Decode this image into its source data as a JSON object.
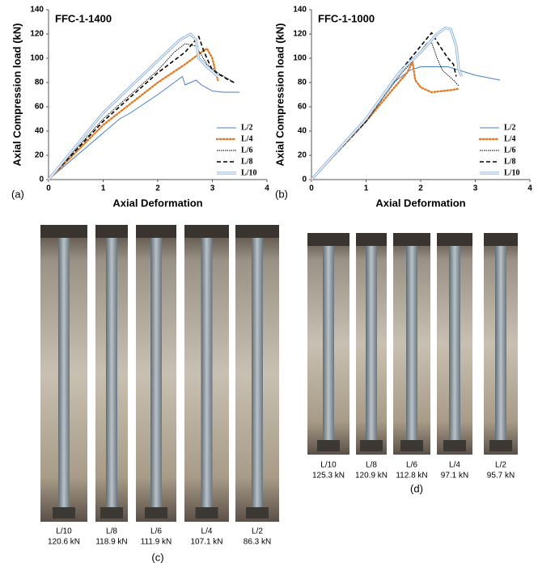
{
  "chart_data": [
    {
      "type": "line",
      "title": "FFC-1-1400",
      "panel": "(a)",
      "x_label": "Axial Deformation",
      "y_label": "Axial Compression load (kN)",
      "xlim": [
        0,
        4
      ],
      "xticks": [
        0,
        1,
        2,
        3,
        4
      ],
      "ylim": [
        0,
        140
      ],
      "yticks": [
        0,
        20,
        40,
        60,
        80,
        100,
        120,
        140
      ],
      "legend": "lower right",
      "series": [
        {
          "name": "L/2",
          "color": "#4a7fc1",
          "style": "solid",
          "x": [
            0,
            1.3,
            1.5,
            2,
            2.3,
            2.45,
            2.5,
            2.7,
            2.8,
            3,
            3.2,
            3.5
          ],
          "values": [
            0,
            50,
            55,
            70,
            80,
            85,
            78,
            82,
            78,
            73,
            72,
            72
          ]
        },
        {
          "name": "L/4",
          "color": "#e07b28",
          "style": "dotted",
          "x": [
            0,
            1,
            2,
            2.5,
            2.8,
            2.9,
            3,
            3.05,
            3.1
          ],
          "values": [
            0,
            45,
            80,
            95,
            105,
            108,
            100,
            90,
            82
          ]
        },
        {
          "name": "L/6",
          "color": "#000000",
          "style": "fine",
          "x": [
            0,
            1,
            2,
            2.3,
            2.5,
            2.7,
            2.9,
            3.1,
            3.4
          ],
          "values": [
            0,
            50,
            90,
            105,
            112,
            110,
            95,
            88,
            80
          ]
        },
        {
          "name": "L/8",
          "color": "#000000",
          "style": "dashed",
          "x": [
            0,
            1,
            2,
            2.5,
            2.75,
            2.85,
            3,
            3.3,
            3.4
          ],
          "values": [
            0,
            48,
            88,
            105,
            118,
            105,
            90,
            82,
            80
          ]
        },
        {
          "name": "L/10",
          "color": "#8fb4de",
          "style": "double",
          "x": [
            0,
            1,
            2,
            2.4,
            2.6,
            2.7,
            2.75,
            2.9,
            3.1
          ],
          "values": [
            0,
            55,
            98,
            115,
            120,
            115,
            100,
            93,
            85
          ]
        }
      ]
    },
    {
      "type": "line",
      "title": "FFC-1-1000",
      "panel": "(b)",
      "x_label": "Axial Deformation",
      "y_label": "Axial Compression load (kN)",
      "xlim": [
        0,
        4
      ],
      "xticks": [
        0,
        1,
        2,
        3,
        4
      ],
      "ylim": [
        0,
        140
      ],
      "yticks": [
        0,
        20,
        40,
        60,
        80,
        100,
        120,
        140
      ],
      "legend": "lower right",
      "series": [
        {
          "name": "L/2",
          "color": "#4a7fc1",
          "style": "solid",
          "x": [
            0,
            1,
            1.5,
            1.8,
            2,
            2.5,
            3,
            3.45
          ],
          "values": [
            0,
            50,
            80,
            90,
            93,
            93,
            86,
            82
          ]
        },
        {
          "name": "L/4",
          "color": "#e07b28",
          "style": "dotted",
          "x": [
            0,
            1,
            1.5,
            1.75,
            1.85,
            1.9,
            2,
            2.2,
            2.6,
            2.7
          ],
          "values": [
            0,
            48,
            75,
            88,
            97,
            82,
            76,
            72,
            74,
            75
          ]
        },
        {
          "name": "L/6",
          "color": "#000000",
          "style": "fine",
          "x": [
            0,
            1,
            1.6,
            1.9,
            2.1,
            2.2,
            2.3,
            2.4,
            2.6,
            2.7
          ],
          "values": [
            0,
            48,
            85,
            100,
            112,
            113,
            100,
            90,
            82,
            77
          ]
        },
        {
          "name": "L/8",
          "color": "#000000",
          "style": "dashed",
          "x": [
            0,
            1,
            1.6,
            2,
            2.2,
            2.35,
            2.5,
            2.6,
            2.65
          ],
          "values": [
            0,
            48,
            88,
            110,
            121,
            110,
            100,
            95,
            85
          ]
        },
        {
          "name": "L/10",
          "color": "#8fb4de",
          "style": "double",
          "x": [
            0,
            1,
            1.6,
            2,
            2.3,
            2.45,
            2.55,
            2.65,
            2.7,
            2.75
          ],
          "values": [
            0,
            50,
            88,
            105,
            120,
            125,
            124,
            110,
            90,
            85
          ]
        }
      ]
    }
  ],
  "photos": [
    {
      "panel": "(c)",
      "items": [
        {
          "name": "L/10",
          "load": "120.6 kN"
        },
        {
          "name": "L/8",
          "load": "118.9 kN"
        },
        {
          "name": "L/6",
          "load": "111.9 kN"
        },
        {
          "name": "L/4",
          "load": "107.1 kN"
        },
        {
          "name": "L/2",
          "load": "86.3 kN"
        }
      ]
    },
    {
      "panel": "(d)",
      "items": [
        {
          "name": "L/10",
          "load": "125.3 kN"
        },
        {
          "name": "L/8",
          "load": "120.9 kN"
        },
        {
          "name": "L/6",
          "load": "112.8 kN"
        },
        {
          "name": "L/4",
          "load": "97.1 kN"
        },
        {
          "name": "L/2",
          "load": "95.7 kN"
        }
      ]
    }
  ]
}
